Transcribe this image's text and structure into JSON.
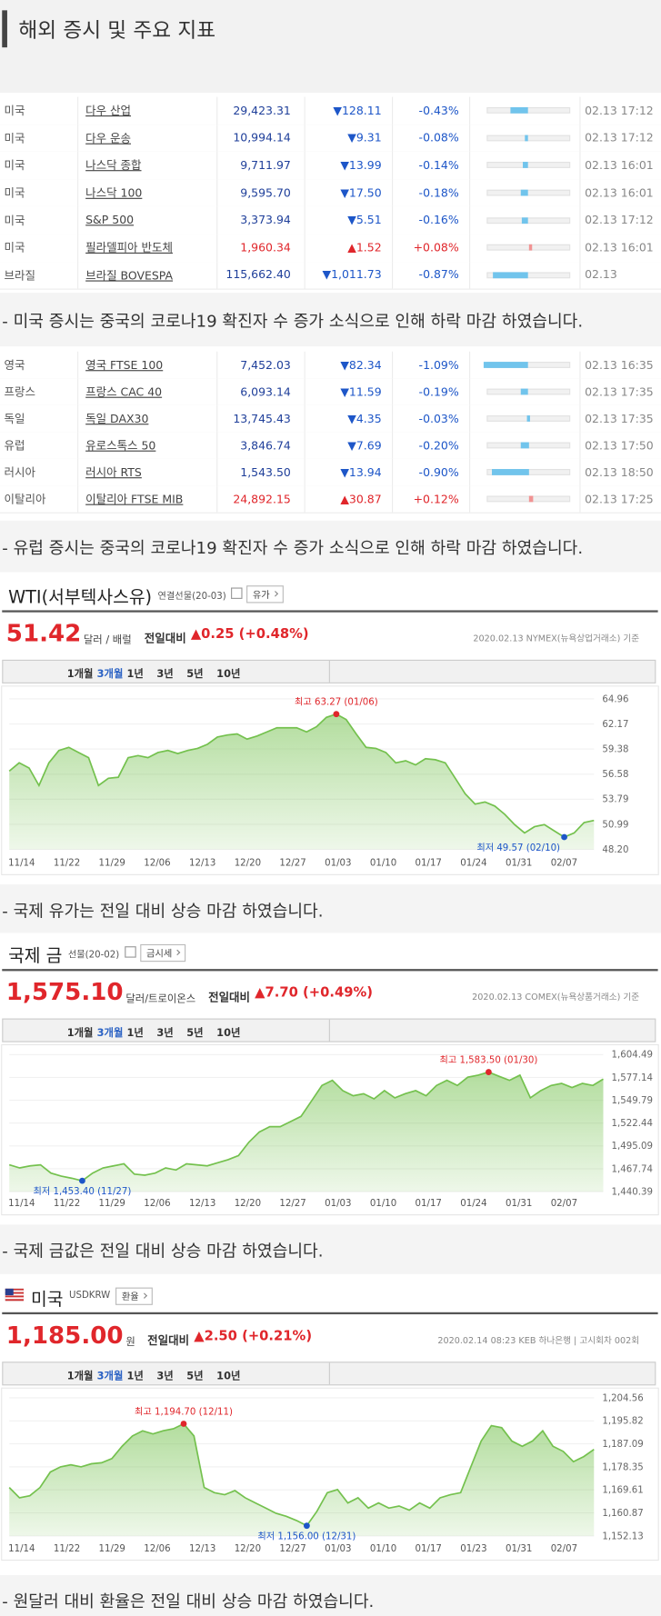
{
  "header": {
    "title": "해외 증시 및 주요 지표"
  },
  "tables": [
    {
      "rows": [
        {
          "country": "미국",
          "name": "다우 산업",
          "price": "29,423.31",
          "change": "▼128.11",
          "pct": {
            "value": -0.43,
            "label": "-0.43%"
          },
          "time": "02.13 17:12"
        },
        {
          "country": "미국",
          "name": "다우 운송",
          "price": "10,994.14",
          "change": "▼9.31",
          "pct": {
            "value": -0.08,
            "label": "-0.08%"
          },
          "time": "02.13 17:12"
        },
        {
          "country": "미국",
          "name": "나스닥 종합",
          "price": "9,711.97",
          "change": "▼13.99",
          "pct": {
            "value": -0.14,
            "label": "-0.14%"
          },
          "time": "02.13 16:01"
        },
        {
          "country": "미국",
          "name": "나스닥 100",
          "price": "9,595.70",
          "change": "▼17.50",
          "pct": {
            "value": -0.18,
            "label": "-0.18%"
          },
          "time": "02.13 16:01"
        },
        {
          "country": "미국",
          "name": "S&P 500",
          "price": "3,373.94",
          "change": "▼5.51",
          "pct": {
            "value": -0.16,
            "label": "-0.16%"
          },
          "time": "02.13 17:12"
        },
        {
          "country": "미국",
          "name": "필라델피아 반도체",
          "price": "1,960.34",
          "change": "▲1.52",
          "pct": {
            "value": 0.08,
            "label": "+0.08%"
          },
          "time": "02.13 16:01"
        },
        {
          "country": "브라질",
          "name": "브라질 BOVESPA",
          "price": "115,662.40",
          "change": "▼1,011.73",
          "pct": {
            "value": -0.87,
            "label": "-0.87%"
          },
          "time": "02.13"
        }
      ]
    },
    {
      "rows": [
        {
          "country": "영국",
          "name": "영국 FTSE 100",
          "price": "7,452.03",
          "change": "▼82.34",
          "pct": {
            "value": -1.09,
            "label": "-1.09%"
          },
          "time": "02.13 16:35"
        },
        {
          "country": "프랑스",
          "name": "프랑스 CAC 40",
          "price": "6,093.14",
          "change": "▼11.59",
          "pct": {
            "value": -0.19,
            "label": "-0.19%"
          },
          "time": "02.13 17:35"
        },
        {
          "country": "독일",
          "name": "독일 DAX30",
          "price": "13,745.43",
          "change": "▼4.35",
          "pct": {
            "value": -0.03,
            "label": "-0.03%"
          },
          "time": "02.13 17:35"
        },
        {
          "country": "유럽",
          "name": "유로스톡스 50",
          "price": "3,846.74",
          "change": "▼7.69",
          "pct": {
            "value": -0.2,
            "label": "-0.20%"
          },
          "time": "02.13 17:50"
        },
        {
          "country": "러시아",
          "name": "러시아 RTS",
          "price": "1,543.50",
          "change": "▼13.94",
          "pct": {
            "value": -0.9,
            "label": "-0.90%"
          },
          "time": "02.13 18:50"
        },
        {
          "country": "이탈리아",
          "name": "이탈리아 FTSE MIB",
          "price": "24,892.15",
          "change": "▲30.87",
          "pct": {
            "value": 0.12,
            "label": "+0.12%"
          },
          "time": "02.13 17:25"
        }
      ]
    }
  ],
  "notes": [
    "- 미국 증시는 중국의 코로나19 확진자 수 증가 소식으로 인해 하락 마감 하였습니다.",
    "- 유럽 증시는 중국의 코로나19 확진자 수 증가 소식으로 인해 하락 마감 하였습니다.",
    "- 국제 유가는 전일 대비 상승 마감 하였습니다.",
    "- 국제 금값은 전일 대비 상승 마감 하였습니다.",
    "- 원달러 대비 환율은 전일 대비 상승 마감 하였습니다."
  ],
  "charts": [
    {
      "type": "area",
      "title": "WTI(서부텍사스유)",
      "subtitle": "연결선물(20-03)",
      "button": "유가",
      "price": "51.42",
      "unit": "달러 / 배럴",
      "change_label": "전일대비",
      "change": "▲0.25 (+0.48%)",
      "source": "2020.02.13 NYMEX(뉴욕상업거래소) 기준",
      "tabs": [
        "1개월",
        "3개월",
        "1년",
        "3년",
        "5년",
        "10년"
      ],
      "selected_tab": 1,
      "color": "#74c14e",
      "values": [
        56.92,
        57.84,
        57.27,
        55.32,
        57.84,
        59.22,
        59.56,
        58.99,
        58.42,
        55.32,
        56.12,
        56.24,
        58.42,
        58.65,
        58.42,
        58.99,
        59.22,
        58.88,
        59.22,
        59.45,
        59.91,
        60.71,
        60.94,
        61.06,
        60.48,
        60.83,
        61.29,
        61.75,
        61.75,
        61.75,
        61.29,
        61.86,
        62.9,
        63.27,
        62.66,
        61.06,
        59.56,
        59.45,
        58.99,
        57.84,
        58.07,
        57.61,
        58.3,
        58.19,
        57.84,
        56.12,
        54.4,
        53.25,
        53.48,
        53.02,
        52.1,
        50.95,
        50.04,
        50.72,
        50.95,
        50.26,
        49.57,
        50.04,
        51.18,
        51.42
      ],
      "ylim": [
        48.2,
        64.96
      ],
      "yticks": [
        {
          "value": 48.2,
          "label": "48.20"
        },
        50.99,
        53.79,
        56.58,
        59.38,
        62.17,
        64.96
      ],
      "x_labels": [
        "11/14",
        "11/22",
        "11/29",
        "12/06",
        "12/13",
        "12/20",
        "12/27",
        "01/03",
        "01/10",
        "01/17",
        "01/24",
        "01/31",
        "02/07"
      ],
      "high_label": "최고 63.27 (01/06)",
      "low_label": "최저 49.57 (02/10)"
    },
    {
      "type": "area",
      "title": "국제 금",
      "subtitle": "선물(20-02)",
      "button": "금시세",
      "price": "1,575.10",
      "unit": "달러/트로이온스",
      "change_label": "전일대비",
      "change": "▲7.70 (+0.49%)",
      "source": "2020.02.13 COMEX(뉴욕상품거래소) 기준",
      "tabs": [
        "1개월",
        "3개월",
        "1년",
        "3년",
        "5년",
        "10년"
      ],
      "selected_tab": 1,
      "color": "#74c14e",
      "values": [
        1472.47,
        1468.77,
        1471.24,
        1472.47,
        1462.6,
        1458.9,
        1456.43,
        1453.4,
        1462.6,
        1468.77,
        1471.24,
        1473.71,
        1461.37,
        1460.14,
        1462.6,
        1468.77,
        1466.3,
        1473.71,
        1472.47,
        1471.24,
        1474.94,
        1478.64,
        1483.58,
        1499.62,
        1511.87,
        1518.12,
        1518.12,
        1524.29,
        1530.46,
        1548.97,
        1567.48,
        1573.65,
        1561.31,
        1555.14,
        1557.61,
        1551.44,
        1561.31,
        1552.67,
        1557.61,
        1561.31,
        1555.14,
        1567.48,
        1573.65,
        1567.48,
        1577.35,
        1579.81,
        1583.5,
        1578.5,
        1573.65,
        1579.81,
        1552.67,
        1561.31,
        1567.48,
        1569.94,
        1565.01,
        1569.94,
        1567.48,
        1575.1
      ],
      "ylim": [
        1440.39,
        1604.49
      ],
      "yticks": [
        {
          "value": 1440.39,
          "label": "1,440.39"
        },
        {
          "value": 1467.74,
          "label": "1,467.74"
        },
        {
          "value": 1495.09,
          "label": "1,495.09"
        },
        {
          "value": 1522.44,
          "label": "1,522.44"
        },
        {
          "value": 1549.79,
          "label": "1,549.79"
        },
        {
          "value": 1577.14,
          "label": "1,577.14"
        },
        {
          "value": 1604.49,
          "label": "1,604.49"
        }
      ],
      "x_labels": [
        "11/14",
        "11/22",
        "11/29",
        "12/06",
        "12/13",
        "12/20",
        "12/27",
        "01/03",
        "01/10",
        "01/17",
        "01/24",
        "01/31",
        "02/07"
      ],
      "high_label": "최고 1,583.50 (01/30)",
      "low_label": "최저 1,453.40 (11/27)"
    },
    {
      "type": "area",
      "title": "미국",
      "subtitle": "USDKRW",
      "button": "환율",
      "price": "1,185.00",
      "unit": "원",
      "change_label": "전일대비",
      "change": "▲2.50 (+0.21%)",
      "source": "2020.02.14 08:23 KEB 하나은행 | 고시회차 002회",
      "tabs": [
        "1개월",
        "3개월",
        "1년",
        "3년",
        "5년",
        "10년"
      ],
      "selected_tab": 1,
      "color": "#74c14e",
      "values": [
        1170.52,
        1166.61,
        1167.39,
        1170.52,
        1176.39,
        1178.34,
        1179.13,
        1178.34,
        1179.52,
        1179.91,
        1181.47,
        1186.17,
        1190.08,
        1192.04,
        1190.87,
        1192.04,
        1192.82,
        1194.7,
        1190.08,
        1170.52,
        1168.56,
        1167.78,
        1169.34,
        1166.61,
        1164.65,
        1162.69,
        1160.74,
        1159.56,
        1158.0,
        1156.0,
        1161.52,
        1168.56,
        1169.74,
        1164.65,
        1166.61,
        1162.69,
        1164.65,
        1162.69,
        1163.47,
        1161.91,
        1164.65,
        1162.69,
        1166.61,
        1167.78,
        1168.56,
        1178.34,
        1188.13,
        1194.0,
        1193.21,
        1188.13,
        1186.17,
        1188.13,
        1192.04,
        1186.17,
        1184.21,
        1180.3,
        1182.26,
        1185.0
      ],
      "ylim": [
        1152.13,
        1204.56
      ],
      "yticks": [
        {
          "value": 1152.13,
          "label": "1,152.13"
        },
        {
          "value": 1160.87,
          "label": "1,160.87"
        },
        {
          "value": 1169.61,
          "label": "1,169.61"
        },
        {
          "value": 1178.35,
          "label": "1,178.35"
        },
        {
          "value": 1187.09,
          "label": "1,187.09"
        },
        {
          "value": 1195.82,
          "label": "1,195.82"
        },
        {
          "value": 1204.56,
          "label": "1,204.56"
        }
      ],
      "x_labels": [
        "11/14",
        "11/22",
        "11/29",
        "12/06",
        "12/13",
        "12/20",
        "12/27",
        "01/03",
        "01/10",
        "01/17",
        "01/23",
        "01/31",
        "02/07"
      ],
      "high_label": "최고 1,194.70 (12/11)",
      "low_label": "최저 1,156.00 (12/31)"
    }
  ]
}
